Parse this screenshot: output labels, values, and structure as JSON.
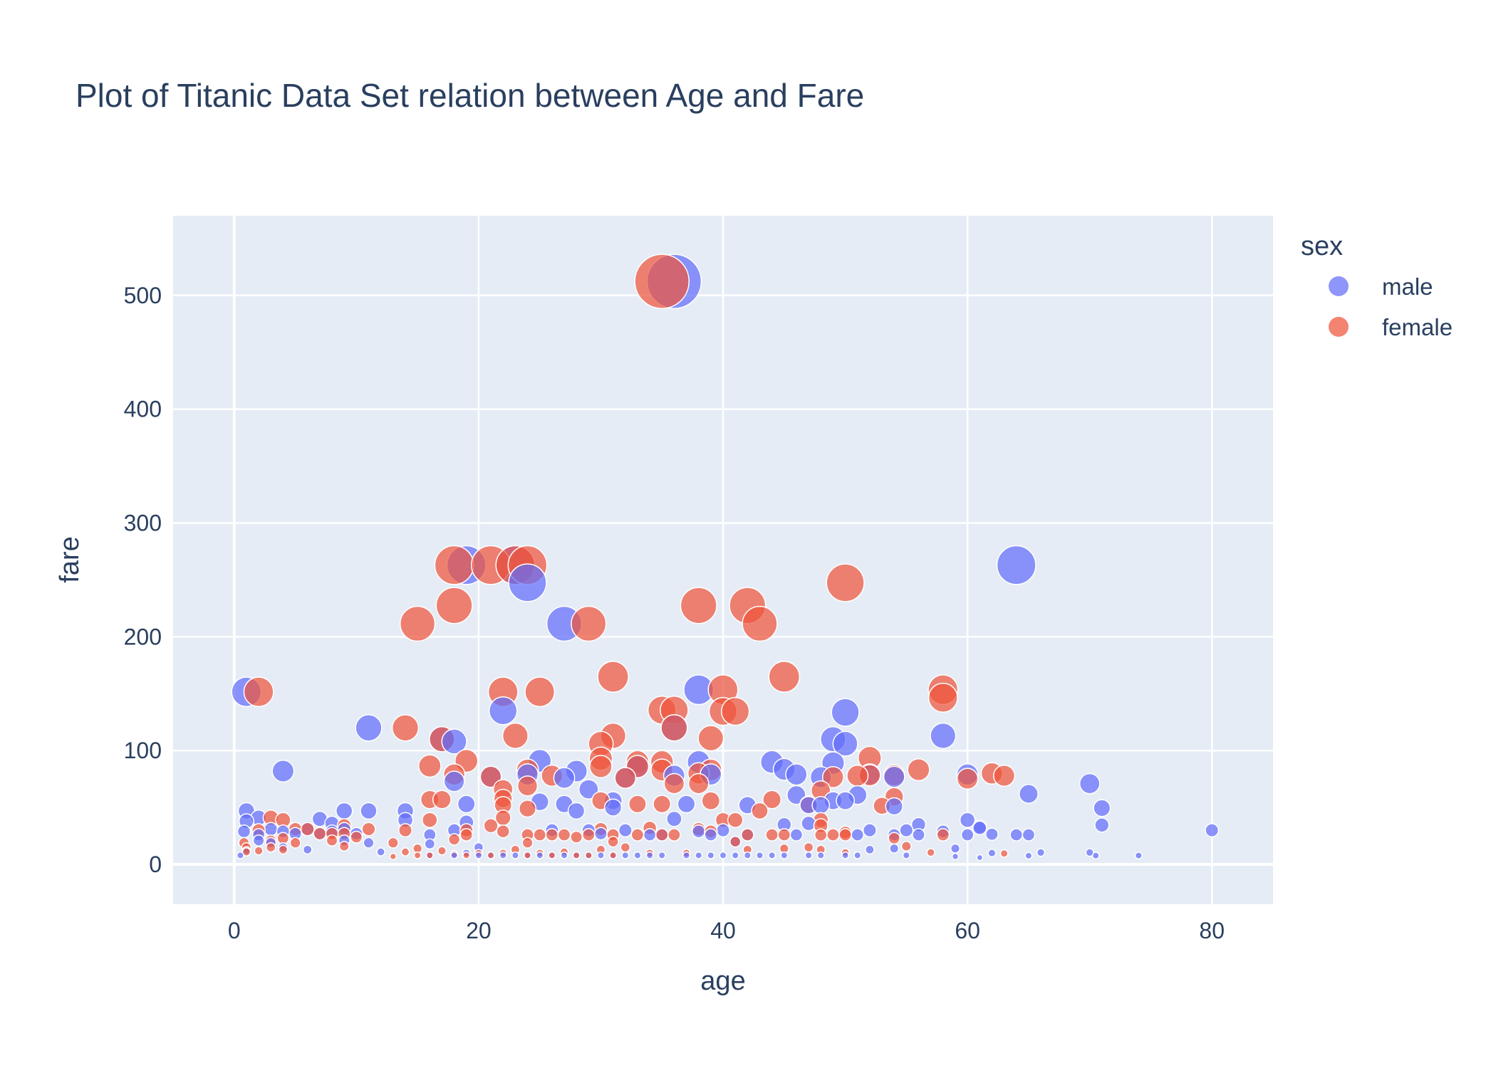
{
  "chart_data": {
    "type": "scatter",
    "title": "Plot of Titanic Data Set relation between Age and Fare",
    "xlabel": "age",
    "ylabel": "fare",
    "xlim": [
      -5,
      85
    ],
    "ylim": [
      -35,
      570
    ],
    "x_ticks": [
      0,
      20,
      40,
      60,
      80
    ],
    "y_ticks": [
      0,
      100,
      200,
      300,
      400,
      500
    ],
    "grid": true,
    "bubble_size_encodes": "fare",
    "legend": {
      "title": "sex",
      "placement": "right"
    },
    "series": [
      {
        "name": "male",
        "color": "#636efa",
        "points": [
          [
            0.5,
            8
          ],
          [
            0.8,
            29
          ],
          [
            1,
            47
          ],
          [
            1,
            38
          ],
          [
            1,
            151.6
          ],
          [
            1,
            12
          ],
          [
            2,
            41
          ],
          [
            2,
            26
          ],
          [
            2,
            21
          ],
          [
            3,
            31
          ],
          [
            3,
            19
          ],
          [
            4,
            82
          ],
          [
            4,
            29
          ],
          [
            4,
            15
          ],
          [
            5,
            27
          ],
          [
            6,
            31
          ],
          [
            6,
            13
          ],
          [
            7,
            40
          ],
          [
            7,
            27
          ],
          [
            8,
            36
          ],
          [
            8,
            29
          ],
          [
            9,
            47
          ],
          [
            9,
            31
          ],
          [
            9,
            21
          ],
          [
            10,
            27
          ],
          [
            11,
            120
          ],
          [
            11,
            47
          ],
          [
            11,
            19
          ],
          [
            12,
            11
          ],
          [
            14,
            47
          ],
          [
            14,
            39
          ],
          [
            16,
            26
          ],
          [
            16,
            18
          ],
          [
            16,
            8
          ],
          [
            17,
            110
          ],
          [
            18,
            108
          ],
          [
            18,
            73
          ],
          [
            18,
            30
          ],
          [
            18,
            8
          ],
          [
            19,
            263
          ],
          [
            19,
            53
          ],
          [
            19,
            37
          ],
          [
            19,
            10
          ],
          [
            20,
            15
          ],
          [
            20,
            8
          ],
          [
            21,
            77
          ],
          [
            21,
            8
          ],
          [
            22,
            135
          ],
          [
            22,
            8
          ],
          [
            23,
            263
          ],
          [
            23,
            8
          ],
          [
            24,
            247.5
          ],
          [
            24,
            79
          ],
          [
            24,
            8
          ],
          [
            25,
            91
          ],
          [
            25,
            55
          ],
          [
            25,
            8
          ],
          [
            26,
            30
          ],
          [
            26,
            8
          ],
          [
            27,
            211.5
          ],
          [
            27,
            76
          ],
          [
            27,
            53
          ],
          [
            27,
            8
          ],
          [
            28,
            82
          ],
          [
            28,
            47
          ],
          [
            28,
            8
          ],
          [
            29,
            66
          ],
          [
            29,
            30
          ],
          [
            29,
            8
          ],
          [
            30,
            27
          ],
          [
            30,
            8
          ],
          [
            31,
            56
          ],
          [
            31,
            50
          ],
          [
            31,
            8
          ],
          [
            32,
            76
          ],
          [
            32,
            30
          ],
          [
            32,
            8
          ],
          [
            33,
            86
          ],
          [
            33,
            8
          ],
          [
            34,
            26
          ],
          [
            34,
            8
          ],
          [
            35,
            26
          ],
          [
            35,
            8
          ],
          [
            36,
            512.3
          ],
          [
            36,
            120
          ],
          [
            36,
            78
          ],
          [
            36,
            40
          ],
          [
            37,
            53
          ],
          [
            37,
            8
          ],
          [
            38,
            153.5
          ],
          [
            38,
            90
          ],
          [
            38,
            29
          ],
          [
            38,
            8
          ],
          [
            39,
            79
          ],
          [
            39,
            26
          ],
          [
            39,
            8
          ],
          [
            40,
            30
          ],
          [
            40,
            8
          ],
          [
            41,
            20
          ],
          [
            41,
            8
          ],
          [
            42,
            52
          ],
          [
            42,
            26
          ],
          [
            42,
            8
          ],
          [
            43,
            8
          ],
          [
            44,
            90
          ],
          [
            44,
            8
          ],
          [
            45,
            83.5
          ],
          [
            45,
            35
          ],
          [
            45,
            8
          ],
          [
            46,
            79
          ],
          [
            46,
            61
          ],
          [
            46,
            26
          ],
          [
            47,
            52
          ],
          [
            47,
            36
          ],
          [
            47,
            8
          ],
          [
            48,
            76.7
          ],
          [
            48,
            52
          ],
          [
            48,
            8
          ],
          [
            49,
            110
          ],
          [
            49,
            89
          ],
          [
            49,
            56
          ],
          [
            50,
            133.6
          ],
          [
            50,
            106
          ],
          [
            50,
            56
          ],
          [
            50,
            8
          ],
          [
            51,
            61
          ],
          [
            51,
            26
          ],
          [
            51,
            8
          ],
          [
            52,
            79
          ],
          [
            52,
            30
          ],
          [
            52,
            13
          ],
          [
            54,
            77
          ],
          [
            54,
            51
          ],
          [
            54,
            26
          ],
          [
            54,
            14
          ],
          [
            55,
            30
          ],
          [
            55,
            8
          ],
          [
            56,
            35
          ],
          [
            56,
            26
          ],
          [
            58,
            113
          ],
          [
            58,
            29
          ],
          [
            59,
            14
          ],
          [
            59,
            7
          ],
          [
            60,
            79
          ],
          [
            60,
            39
          ],
          [
            60,
            26
          ],
          [
            61,
            33
          ],
          [
            61,
            32
          ],
          [
            61,
            6
          ],
          [
            62,
            26.5
          ],
          [
            62,
            10
          ],
          [
            64,
            263
          ],
          [
            64,
            26
          ],
          [
            65,
            62
          ],
          [
            65,
            26
          ],
          [
            65,
            7.7
          ],
          [
            66,
            10.5
          ],
          [
            70,
            71
          ],
          [
            70,
            10.5
          ],
          [
            70.5,
            7.75
          ],
          [
            71,
            49.5
          ],
          [
            71,
            34.6
          ],
          [
            74,
            7.8
          ],
          [
            80,
            30
          ]
        ]
      },
      {
        "name": "female",
        "color": "#ef553b",
        "points": [
          [
            0.8,
            19
          ],
          [
            1,
            15
          ],
          [
            1,
            11
          ],
          [
            2,
            151.6
          ],
          [
            2,
            30
          ],
          [
            2,
            12
          ],
          [
            3,
            41
          ],
          [
            3,
            21
          ],
          [
            3,
            15
          ],
          [
            4,
            39
          ],
          [
            4,
            23
          ],
          [
            4,
            13
          ],
          [
            5,
            31
          ],
          [
            5,
            19
          ],
          [
            6,
            31
          ],
          [
            7,
            27
          ],
          [
            8,
            27
          ],
          [
            8,
            21
          ],
          [
            9,
            34
          ],
          [
            9,
            27
          ],
          [
            9,
            16
          ],
          [
            10,
            24
          ],
          [
            11,
            31
          ],
          [
            13,
            19
          ],
          [
            13,
            7
          ],
          [
            14,
            120
          ],
          [
            14,
            30
          ],
          [
            14,
            11
          ],
          [
            15,
            211.5
          ],
          [
            15,
            14
          ],
          [
            15,
            8
          ],
          [
            16,
            86.5
          ],
          [
            16,
            57
          ],
          [
            16,
            39
          ],
          [
            16,
            8
          ],
          [
            17,
            110
          ],
          [
            17,
            57
          ],
          [
            17,
            12
          ],
          [
            18,
            263
          ],
          [
            18,
            227.5
          ],
          [
            18,
            79
          ],
          [
            18,
            22
          ],
          [
            18,
            9
          ],
          [
            19,
            91
          ],
          [
            19,
            30
          ],
          [
            19,
            26
          ],
          [
            19,
            8
          ],
          [
            20,
            9.8
          ],
          [
            21,
            263
          ],
          [
            21,
            77
          ],
          [
            21,
            34
          ],
          [
            21,
            8
          ],
          [
            22,
            151.6
          ],
          [
            22,
            66
          ],
          [
            22,
            58
          ],
          [
            22,
            52
          ],
          [
            22,
            41
          ],
          [
            22,
            29
          ],
          [
            22,
            10
          ],
          [
            23,
            263
          ],
          [
            23,
            113
          ],
          [
            23,
            13
          ],
          [
            24,
            263
          ],
          [
            24,
            83
          ],
          [
            24,
            69
          ],
          [
            24,
            49
          ],
          [
            24,
            26
          ],
          [
            24,
            19
          ],
          [
            24,
            8
          ],
          [
            25,
            151.6
          ],
          [
            25,
            26
          ],
          [
            25,
            10
          ],
          [
            26,
            78
          ],
          [
            26,
            26
          ],
          [
            26,
            8
          ],
          [
            27,
            26
          ],
          [
            27,
            11
          ],
          [
            28,
            24
          ],
          [
            28,
            8
          ],
          [
            29,
            211.5
          ],
          [
            29,
            26
          ],
          [
            29,
            8
          ],
          [
            30,
            106
          ],
          [
            30,
            93
          ],
          [
            30,
            86
          ],
          [
            30,
            56
          ],
          [
            30,
            31
          ],
          [
            30,
            13
          ],
          [
            31,
            164.9
          ],
          [
            31,
            113
          ],
          [
            31,
            26
          ],
          [
            31,
            20
          ],
          [
            31,
            8
          ],
          [
            32,
            76
          ],
          [
            32,
            15
          ],
          [
            33,
            90
          ],
          [
            33,
            86
          ],
          [
            33,
            53
          ],
          [
            33,
            26
          ],
          [
            34,
            32
          ],
          [
            34,
            10
          ],
          [
            35,
            512.3
          ],
          [
            35,
            135.6
          ],
          [
            35,
            90
          ],
          [
            35,
            83
          ],
          [
            35,
            53
          ],
          [
            35,
            26
          ],
          [
            36,
            135.6
          ],
          [
            36,
            120
          ],
          [
            36,
            71
          ],
          [
            36,
            26
          ],
          [
            37,
            10
          ],
          [
            38,
            227.5
          ],
          [
            38,
            80
          ],
          [
            38,
            71
          ],
          [
            38,
            31
          ],
          [
            39,
            110.9
          ],
          [
            39,
            83
          ],
          [
            39,
            55.9
          ],
          [
            39,
            29
          ],
          [
            40,
            153.5
          ],
          [
            40,
            134.5
          ],
          [
            40,
            39
          ],
          [
            41,
            134.5
          ],
          [
            41,
            39
          ],
          [
            41,
            20
          ],
          [
            42,
            227.5
          ],
          [
            42,
            26
          ],
          [
            42,
            13
          ],
          [
            43,
            211.5
          ],
          [
            43,
            47
          ],
          [
            44,
            57
          ],
          [
            44,
            26
          ],
          [
            45,
            164.9
          ],
          [
            45,
            26
          ],
          [
            45,
            14
          ],
          [
            47,
            52.6
          ],
          [
            47,
            15
          ],
          [
            48,
            65
          ],
          [
            48,
            39
          ],
          [
            48,
            34
          ],
          [
            48,
            25.9
          ],
          [
            48,
            13
          ],
          [
            49,
            76.7
          ],
          [
            49,
            26
          ],
          [
            50,
            247.5
          ],
          [
            50,
            28
          ],
          [
            50,
            26
          ],
          [
            50,
            10.5
          ],
          [
            51,
            77.9
          ],
          [
            52,
            93.5
          ],
          [
            52,
            78.3
          ],
          [
            53,
            51.5
          ],
          [
            54,
            78.3
          ],
          [
            54,
            59.4
          ],
          [
            54,
            23
          ],
          [
            55,
            16
          ],
          [
            56,
            83.2
          ],
          [
            57,
            10.5
          ],
          [
            58,
            153.5
          ],
          [
            58,
            146.5
          ],
          [
            58,
            26
          ],
          [
            60,
            75.3
          ],
          [
            62,
            80
          ],
          [
            63,
            77.9
          ],
          [
            63,
            9.6
          ]
        ]
      }
    ]
  }
}
